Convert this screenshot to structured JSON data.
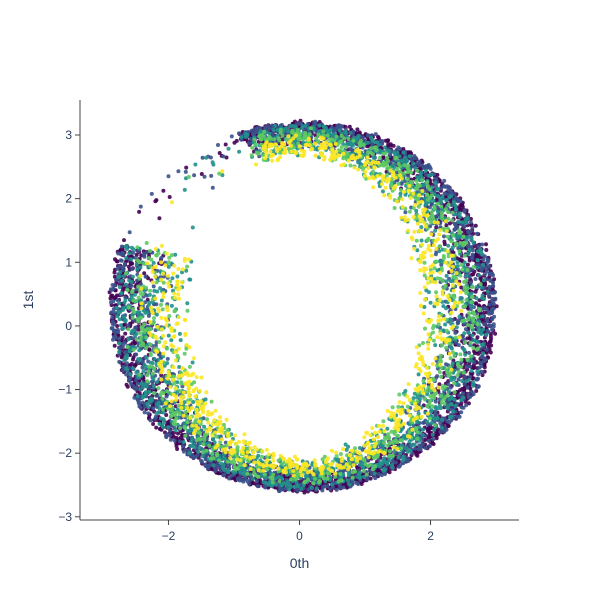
{
  "chart_data": {
    "type": "scatter",
    "title": "",
    "xlabel": "0th",
    "ylabel": "1st",
    "xlim": [
      -3.35,
      3.35
    ],
    "ylim": [
      -3.05,
      3.55
    ],
    "xticks": [
      -2,
      0,
      2
    ],
    "xtick_labels": [
      "−2",
      "0",
      "2"
    ],
    "yticks": [
      -3,
      -2,
      -1,
      0,
      1,
      2,
      3
    ],
    "ytick_labels": [
      "−3",
      "−2",
      "−1",
      "0",
      "1",
      "2",
      "3"
    ],
    "grid": false,
    "legend": "none",
    "colorscale": [
      "#440154",
      "#3b528b",
      "#21918c",
      "#5ec962",
      "#fde725"
    ],
    "point_count": 6500,
    "distribution": {
      "shape": "ring",
      "center": [
        0.05,
        0.3
      ],
      "outer_radius_x": 2.95,
      "outer_radius_y": 2.9,
      "inner_radius_x": 1.75,
      "inner_radius_y": 2.35,
      "gap_angle_deg_range": [
        110,
        160
      ],
      "note_color": "outer edge darker (low value), inner side brighter (high value)"
    }
  }
}
